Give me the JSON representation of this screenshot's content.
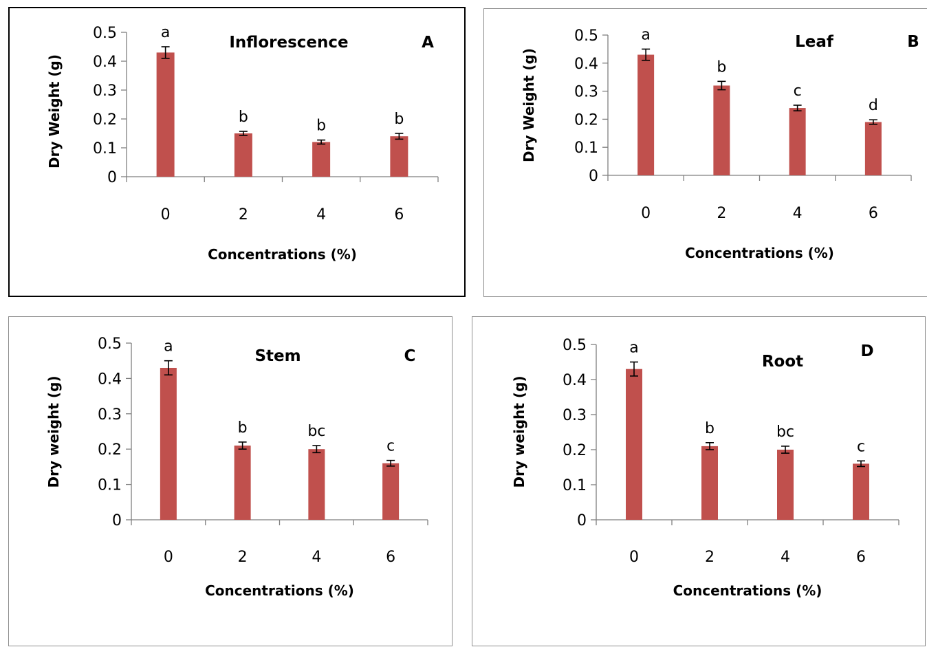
{
  "colors": {
    "bar": "#c0504d",
    "axis": "#7f7f7f",
    "text": "#000000"
  },
  "chart_data": [
    {
      "id": "A",
      "type": "bar",
      "title": "Inflorescence",
      "panel_letter": "A",
      "xlabel": "Concentrations (%)",
      "ylabel": "Dry Weight (g)",
      "categories": [
        "0",
        "2",
        "4",
        "6"
      ],
      "values": [
        0.43,
        0.15,
        0.12,
        0.14
      ],
      "errors": [
        0.02,
        0.007,
        0.007,
        0.01
      ],
      "significance": [
        "a",
        "b",
        "b",
        "b"
      ],
      "ylim": [
        0,
        0.5
      ],
      "yticks": [
        "0",
        "0.1",
        "0.2",
        "0.3",
        "0.4",
        "0.5"
      ],
      "grid": false
    },
    {
      "id": "B",
      "type": "bar",
      "title": "Leaf",
      "panel_letter": "B",
      "xlabel": "Concentrations (%)",
      "ylabel": "Dry Weight (g)",
      "categories": [
        "0",
        "2",
        "4",
        "6"
      ],
      "values": [
        0.43,
        0.32,
        0.24,
        0.19
      ],
      "errors": [
        0.02,
        0.015,
        0.01,
        0.008
      ],
      "significance": [
        "a",
        "b",
        "c",
        "d"
      ],
      "ylim": [
        0,
        0.5
      ],
      "yticks": [
        "0",
        "0.1",
        "0.2",
        "0.3",
        "0.4",
        "0.5"
      ],
      "grid": false
    },
    {
      "id": "C",
      "type": "bar",
      "title": "Stem",
      "panel_letter": "C",
      "xlabel": "Concentrations (%)",
      "ylabel": "Dry weight (g)",
      "categories": [
        "0",
        "2",
        "4",
        "6"
      ],
      "values": [
        0.43,
        0.21,
        0.2,
        0.16
      ],
      "errors": [
        0.02,
        0.01,
        0.01,
        0.008
      ],
      "significance": [
        "a",
        "b",
        "bc",
        "c"
      ],
      "ylim": [
        0,
        0.5
      ],
      "yticks": [
        "0",
        "0.1",
        "0.2",
        "0.3",
        "0.4",
        "0.5"
      ],
      "grid": false
    },
    {
      "id": "D",
      "type": "bar",
      "title": "Root",
      "panel_letter": "D",
      "xlabel": "Concentrations (%)",
      "ylabel": "Dry weight (g)",
      "categories": [
        "0",
        "2",
        "4",
        "6"
      ],
      "values": [
        0.43,
        0.21,
        0.2,
        0.16
      ],
      "errors": [
        0.02,
        0.01,
        0.01,
        0.008
      ],
      "significance": [
        "a",
        "b",
        "bc",
        "c"
      ],
      "ylim": [
        0,
        0.5
      ],
      "yticks": [
        "0",
        "0.1",
        "0.2",
        "0.3",
        "0.4",
        "0.5"
      ],
      "grid": false
    }
  ]
}
